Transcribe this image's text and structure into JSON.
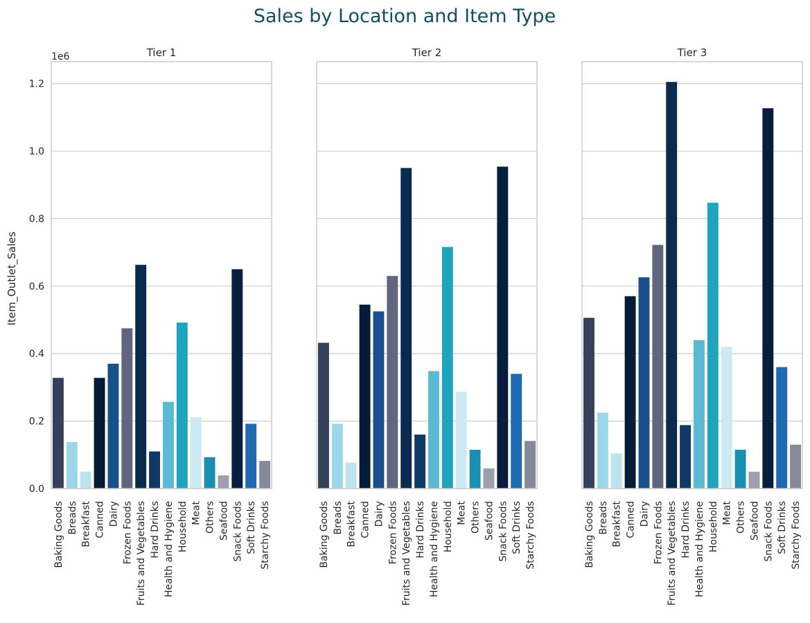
{
  "figure": {
    "title": "Sales by Location and Item Type",
    "title_color": "#134e63",
    "ylabel": "Item_Outlet_Sales",
    "offset_text": "1e6"
  },
  "chart_data": {
    "type": "bar",
    "ylim": [
      0,
      1265000
    ],
    "yticks": [
      0.0,
      0.2,
      0.4,
      0.6,
      0.8,
      1.0,
      1.2
    ],
    "ytick_labels": [
      "0.0",
      "0.2",
      "0.4",
      "0.6",
      "0.8",
      "1.0",
      "1.2"
    ],
    "grid": true,
    "categories": [
      "Baking Goods",
      "Breads",
      "Breakfast",
      "Canned",
      "Dairy",
      "Frozen Foods",
      "Fruits and Vegetables",
      "Hard Drinks",
      "Health and Hygiene",
      "Household",
      "Meat",
      "Others",
      "Seafood",
      "Snack Foods",
      "Soft Drinks",
      "Starchy Foods"
    ],
    "colors": [
      "#344158",
      "#9ad8e7",
      "#bce3ee",
      "#051b36",
      "#1a4f8d",
      "#5f667e",
      "#0a2b4e",
      "#0f3a68",
      "#5ab9d3",
      "#1ea4bf",
      "#cceaf3",
      "#1990b2",
      "#9b9fae",
      "#081e3d",
      "#1f6ab2",
      "#85899a"
    ],
    "panels": [
      {
        "title": "Tier 1",
        "values": [
          328000,
          138000,
          50000,
          328000,
          370000,
          475000,
          663000,
          110000,
          257000,
          492000,
          212000,
          93000,
          39000,
          650000,
          192000,
          82000
        ]
      },
      {
        "title": "Tier 2",
        "values": [
          432000,
          192000,
          77000,
          545000,
          525000,
          630000,
          950000,
          160000,
          348000,
          716000,
          287000,
          115000,
          60000,
          954000,
          340000,
          141000
        ]
      },
      {
        "title": "Tier 3",
        "values": [
          506000,
          225000,
          104000,
          570000,
          626000,
          722000,
          1205000,
          188000,
          440000,
          847000,
          420000,
          115000,
          50000,
          1127000,
          360000,
          130000
        ]
      }
    ]
  }
}
